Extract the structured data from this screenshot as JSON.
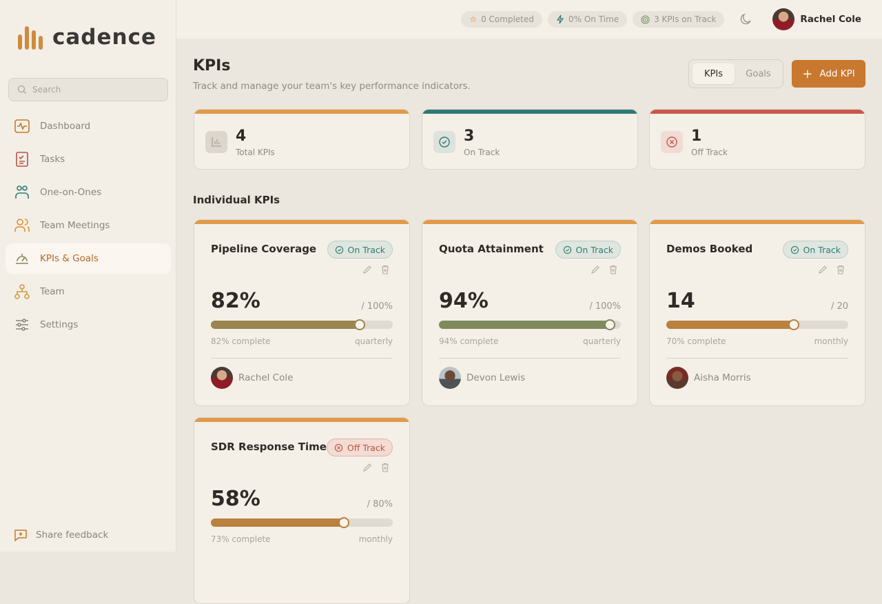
{
  "app": {
    "name": "cadence"
  },
  "sidebar": {
    "search_placeholder": "Search",
    "items": [
      {
        "label": "Dashboard",
        "icon": "activity-icon",
        "color": "#c8782f"
      },
      {
        "label": "Tasks",
        "icon": "clipboard-check-icon",
        "color": "#c0503f"
      },
      {
        "label": "One-on-Ones",
        "icon": "users-pair-icon",
        "color": "#2f7a74"
      },
      {
        "label": "Team Meetings",
        "icon": "users-icon",
        "color": "#e6902a"
      },
      {
        "label": "KPIs & Goals",
        "icon": "gauge-icon",
        "color": "#7f8a5c",
        "active": true
      },
      {
        "label": "Team",
        "icon": "org-chart-icon",
        "color": "#d9983e"
      },
      {
        "label": "Settings",
        "icon": "sliders-icon",
        "color": "#8a857c"
      }
    ],
    "feedback": "Share feedback"
  },
  "topbar": {
    "chips": [
      "0 Completed",
      "0% On Time",
      "3 KPIs on Track"
    ],
    "user": "Rachel Cole"
  },
  "page": {
    "title": "KPIs",
    "subtitle": "Track and manage your team's key performance indicators.",
    "tabs": [
      "KPIs",
      "Goals"
    ],
    "active_tab": "KPIs",
    "add_button": "Add KPI",
    "section": "Individual KPIs"
  },
  "stats": [
    {
      "value": "4",
      "label": "Total KPIs",
      "color": "#e09a4a"
    },
    {
      "value": "3",
      "label": "On Track",
      "color": "#2f7a74"
    },
    {
      "value": "1",
      "label": "Off Track",
      "color": "#c9584a"
    }
  ],
  "kpis": [
    {
      "name": "Pipeline Coverage",
      "status": "On Track",
      "value": "82%",
      "target": "/ 100%",
      "progress": 82,
      "complete": "82% complete",
      "period": "quarterly",
      "owner": "Rachel Cole",
      "color": "#9a8550"
    },
    {
      "name": "Quota Attainment",
      "status": "On Track",
      "value": "94%",
      "target": "/ 100%",
      "progress": 94,
      "complete": "94% complete",
      "period": "quarterly",
      "owner": "Devon Lewis",
      "color": "#7f8a5c"
    },
    {
      "name": "Demos Booked",
      "status": "On Track",
      "value": "14",
      "target": "/ 20",
      "progress": 70,
      "complete": "70% complete",
      "period": "monthly",
      "owner": "Aisha Morris",
      "color": "#b9803e"
    },
    {
      "name": "SDR Response Time",
      "status": "Off Track",
      "value": "58%",
      "target": "/ 80%",
      "progress": 73,
      "complete": "73% complete",
      "period": "monthly",
      "owner": "",
      "color": "#b9803e"
    }
  ]
}
